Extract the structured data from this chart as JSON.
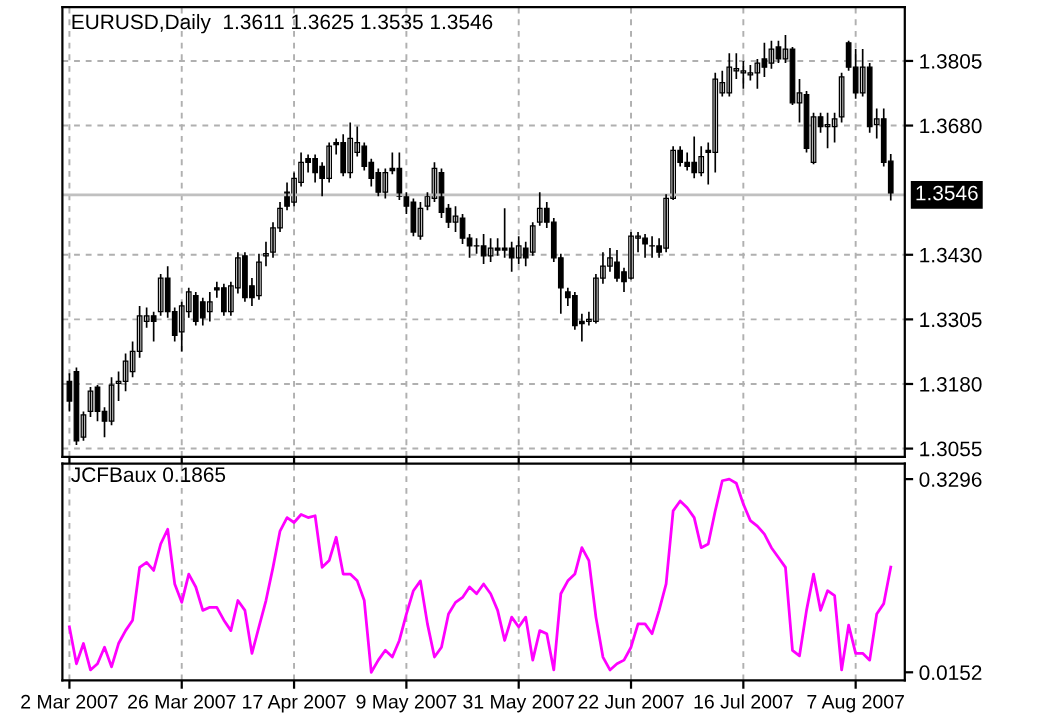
{
  "chart_data": [
    {
      "type": "candlestick",
      "title": "EURUSD,Daily  1.3611 1.3625 1.3535 1.3546",
      "categories": [
        null,
        null,
        null,
        null,
        null,
        null,
        null,
        null,
        null,
        null,
        null,
        null,
        null,
        null,
        null,
        null,
        null,
        null,
        null,
        null,
        null,
        null,
        null,
        null,
        null,
        null,
        null,
        null,
        null,
        null,
        null,
        null,
        null,
        null,
        null,
        null,
        null,
        null,
        null,
        null,
        null,
        null,
        null,
        null,
        null,
        null,
        null,
        null,
        null,
        null,
        null,
        null,
        null,
        null,
        null,
        null,
        null,
        null,
        null,
        null,
        null,
        null,
        null,
        null,
        null,
        null,
        null,
        null,
        null,
        null,
        null,
        null,
        null,
        null,
        null,
        null,
        null,
        null,
        null,
        null,
        null,
        null,
        null,
        null,
        null,
        null,
        null,
        null,
        null,
        null,
        null,
        null,
        null,
        null,
        null,
        null,
        null,
        null,
        null,
        null,
        null,
        null,
        null,
        null,
        null,
        null,
        null,
        null,
        null,
        null,
        null,
        null,
        null,
        null,
        null,
        null,
        null,
        null
      ],
      "ohlc": [
        [
          1.3185,
          1.3201,
          1.3127,
          1.3147
        ],
        [
          1.3204,
          1.3212,
          1.3062,
          1.307
        ],
        [
          1.3077,
          1.3127,
          1.307,
          1.312
        ],
        [
          1.3127,
          1.3174,
          1.3116,
          1.3166
        ],
        [
          1.3174,
          1.3178,
          1.3108,
          1.3127
        ],
        [
          1.3127,
          1.3135,
          1.3077,
          1.3108
        ],
        [
          1.3108,
          1.3193,
          1.31,
          1.3178
        ],
        [
          1.3181,
          1.3204,
          1.3147,
          1.3185
        ],
        [
          1.3185,
          1.3239,
          1.3166,
          1.3224
        ],
        [
          1.3204,
          1.3262,
          1.3193,
          1.3243
        ],
        [
          1.3243,
          1.3331,
          1.3231,
          1.3312
        ],
        [
          1.3301,
          1.3328,
          1.3289,
          1.3312
        ],
        [
          1.3312,
          1.332,
          1.3262,
          1.3301
        ],
        [
          1.332,
          1.3393,
          1.3312,
          1.3385
        ],
        [
          1.3385,
          1.3408,
          1.3308,
          1.332
        ],
        [
          1.332,
          1.3328,
          1.3262,
          1.3274
        ],
        [
          1.3281,
          1.3339,
          1.3243,
          1.3331
        ],
        [
          1.332,
          1.3366,
          1.3308,
          1.3358
        ],
        [
          1.3351,
          1.3358,
          1.3293,
          1.3301
        ],
        [
          1.3339,
          1.3347,
          1.3293,
          1.3308
        ],
        [
          1.332,
          1.3358,
          1.3301,
          1.3339
        ],
        [
          1.3366,
          1.3378,
          1.3347,
          1.3362
        ],
        [
          1.3366,
          1.3374,
          1.3312,
          1.332
        ],
        [
          1.332,
          1.3378,
          1.3312,
          1.337
        ],
        [
          1.3366,
          1.3435,
          1.3355,
          1.3424
        ],
        [
          1.3428,
          1.3435,
          1.3339,
          1.3347
        ],
        [
          1.337,
          1.3385,
          1.3331,
          1.3347
        ],
        [
          1.3351,
          1.3432,
          1.3343,
          1.3416
        ],
        [
          1.3428,
          1.3455,
          1.3408,
          1.3432
        ],
        [
          1.3435,
          1.3493,
          1.3424,
          1.3482
        ],
        [
          1.3482,
          1.3532,
          1.3474,
          1.352
        ],
        [
          1.3551,
          1.357,
          1.3516,
          1.3524
        ],
        [
          1.3532,
          1.3589,
          1.3524,
          1.3578
        ],
        [
          1.357,
          1.3628,
          1.3562,
          1.3609
        ],
        [
          1.3616,
          1.3624,
          1.3589,
          1.3609
        ],
        [
          1.3616,
          1.3624,
          1.357,
          1.3589
        ],
        [
          1.3601,
          1.3609,
          1.3543,
          1.3578
        ],
        [
          1.3578,
          1.3647,
          1.357,
          1.364
        ],
        [
          1.3647,
          1.3655,
          1.3624,
          1.3643
        ],
        [
          1.3647,
          1.3663,
          1.3582,
          1.3589
        ],
        [
          1.3589,
          1.3686,
          1.3578,
          1.3655
        ],
        [
          1.3628,
          1.3678,
          1.362,
          1.3647
        ],
        [
          1.364,
          1.3647,
          1.3593,
          1.3601
        ],
        [
          1.3609,
          1.3616,
          1.3562,
          1.3578
        ],
        [
          1.3589,
          1.3597,
          1.3543,
          1.3551
        ],
        [
          1.3551,
          1.3597,
          1.3539,
          1.3589
        ],
        [
          1.3597,
          1.3628,
          1.3586,
          1.3593
        ],
        [
          1.3597,
          1.3628,
          1.3536,
          1.3543
        ],
        [
          1.3543,
          1.3551,
          1.3509,
          1.3524
        ],
        [
          1.3532,
          1.3539,
          1.3466,
          1.3474
        ],
        [
          1.3466,
          1.3532,
          1.3459,
          1.352
        ],
        [
          1.3524,
          1.3551,
          1.3516,
          1.3543
        ],
        [
          1.3539,
          1.3609,
          1.3532,
          1.3597
        ],
        [
          1.3589,
          1.3597,
          1.3501,
          1.3512
        ],
        [
          1.352,
          1.3528,
          1.3482,
          1.3493
        ],
        [
          1.3493,
          1.3524,
          1.3474,
          1.3505
        ],
        [
          1.3501,
          1.3509,
          1.3451,
          1.3462
        ],
        [
          1.3462,
          1.347,
          1.3424,
          1.3447
        ],
        [
          1.3447,
          1.3462,
          1.3432,
          1.3447
        ],
        [
          1.3447,
          1.347,
          1.3412,
          1.3428
        ],
        [
          1.3428,
          1.3462,
          1.3416,
          1.3443
        ],
        [
          1.3443,
          1.3462,
          1.3428,
          1.3439
        ],
        [
          1.3443,
          1.352,
          1.3424,
          1.3439
        ],
        [
          1.3443,
          1.3455,
          1.3397,
          1.3424
        ],
        [
          1.3424,
          1.3466,
          1.3412,
          1.3447
        ],
        [
          1.3443,
          1.3455,
          1.3408,
          1.3424
        ],
        [
          1.3435,
          1.3493,
          1.3428,
          1.3486
        ],
        [
          1.3493,
          1.3551,
          1.3486,
          1.352
        ],
        [
          1.352,
          1.3532,
          1.3482,
          1.3493
        ],
        [
          1.3493,
          1.3501,
          1.3416,
          1.3424
        ],
        [
          1.3424,
          1.3432,
          1.3316,
          1.3366
        ],
        [
          1.3358,
          1.3366,
          1.3331,
          1.3347
        ],
        [
          1.3351,
          1.3358,
          1.3285,
          1.3293
        ],
        [
          1.3301,
          1.3316,
          1.3262,
          1.3297
        ],
        [
          1.3301,
          1.332,
          1.3293,
          1.3305
        ],
        [
          1.3301,
          1.3393,
          1.3297,
          1.3385
        ],
        [
          1.3385,
          1.3435,
          1.3374,
          1.3408
        ],
        [
          1.3408,
          1.3443,
          1.3397,
          1.3424
        ],
        [
          1.3416,
          1.3439,
          1.3378,
          1.3385
        ],
        [
          1.3397,
          1.3405,
          1.3358,
          1.3378
        ],
        [
          1.3385,
          1.3474,
          1.3382,
          1.3466
        ],
        [
          1.3462,
          1.3474,
          1.3435,
          1.3466
        ],
        [
          1.3462,
          1.347,
          1.3424,
          1.3451
        ],
        [
          1.3447,
          1.3466,
          1.3424,
          1.3447
        ],
        [
          1.3447,
          1.3462,
          1.3424,
          1.3435
        ],
        [
          1.3443,
          1.3547,
          1.3435,
          1.3539
        ],
        [
          1.3539,
          1.364,
          1.3536,
          1.3632
        ],
        [
          1.3632,
          1.364,
          1.3601,
          1.3609
        ],
        [
          1.3609,
          1.3628,
          1.3593,
          1.3601
        ],
        [
          1.3609,
          1.3659,
          1.3578,
          1.3589
        ],
        [
          1.3589,
          1.364,
          1.3582,
          1.362
        ],
        [
          1.3632,
          1.3647,
          1.3566,
          1.3628
        ],
        [
          1.3628,
          1.3782,
          1.3589,
          1.377
        ],
        [
          1.3743,
          1.3786,
          1.3736,
          1.3763
        ],
        [
          1.3743,
          1.382,
          1.3736,
          1.3793
        ],
        [
          1.3786,
          1.382,
          1.377,
          1.379
        ],
        [
          1.3782,
          1.3805,
          1.3751,
          1.3786
        ],
        [
          1.3778,
          1.3797,
          1.3767,
          1.3782
        ],
        [
          1.3782,
          1.3809,
          1.3751,
          1.3801
        ],
        [
          1.3809,
          1.384,
          1.3774,
          1.3793
        ],
        [
          1.3801,
          1.3844,
          1.379,
          1.3828
        ],
        [
          1.3832,
          1.3844,
          1.3801,
          1.3809
        ],
        [
          1.3809,
          1.3855,
          1.3801,
          1.3828
        ],
        [
          1.3828,
          1.3832,
          1.372,
          1.3724
        ],
        [
          1.3724,
          1.377,
          1.3686,
          1.3743
        ],
        [
          1.374,
          1.3747,
          1.3628,
          1.3636
        ],
        [
          1.3609,
          1.3705,
          1.3605,
          1.3697
        ],
        [
          1.3697,
          1.3705,
          1.3666,
          1.3678
        ],
        [
          1.3678,
          1.3705,
          1.3636,
          1.3682
        ],
        [
          1.3678,
          1.3705,
          1.3647,
          1.3693
        ],
        [
          1.3697,
          1.3782,
          1.3686,
          1.3774
        ],
        [
          1.384,
          1.3844,
          1.3786,
          1.3793
        ],
        [
          1.3793,
          1.3828,
          1.3732,
          1.3743
        ],
        [
          1.3743,
          1.3828,
          1.3736,
          1.3793
        ],
        [
          1.3793,
          1.3801,
          1.3666,
          1.3678
        ],
        [
          1.3682,
          1.3713,
          1.3655,
          1.3693
        ],
        [
          1.3693,
          1.3713,
          1.3601,
          1.3609
        ],
        [
          1.3611,
          1.3625,
          1.3535,
          1.3546
        ]
      ],
      "ylim": [
        1.3039,
        1.3909
      ],
      "yticks": [
        1.3055,
        {
          "value": 1.318,
          "label": "1.3180"
        },
        1.3305,
        {
          "value": 1.343,
          "label": "1.3430"
        },
        {
          "value": 1.368,
          "label": "1.3680"
        },
        1.3805
      ],
      "ref_lines": [
        {
          "axis": "y",
          "value": 1.3546,
          "label": "1.3546",
          "color": "#c0c0c0"
        }
      ],
      "grid": true,
      "tick_labels": "y"
    },
    {
      "type": "line",
      "title": "JCFBaux 0.1865",
      "categories": [
        "2 Mar 2007",
        null,
        null,
        null,
        null,
        null,
        null,
        null,
        null,
        null,
        null,
        null,
        null,
        null,
        null,
        null,
        "26 Mar 2007",
        null,
        null,
        null,
        null,
        null,
        null,
        null,
        null,
        null,
        null,
        null,
        null,
        null,
        null,
        null,
        "17 Apr 2007",
        null,
        null,
        null,
        null,
        null,
        null,
        null,
        null,
        null,
        null,
        null,
        null,
        null,
        null,
        null,
        "9 May 2007",
        null,
        null,
        null,
        null,
        null,
        null,
        null,
        null,
        null,
        null,
        null,
        null,
        null,
        null,
        null,
        "31 May 2007",
        null,
        null,
        null,
        null,
        null,
        null,
        null,
        null,
        null,
        null,
        null,
        null,
        null,
        null,
        null,
        "22 Jun 2007",
        null,
        null,
        null,
        null,
        null,
        null,
        null,
        null,
        null,
        null,
        null,
        null,
        null,
        null,
        null,
        "16 Jul 2007",
        null,
        null,
        null,
        null,
        null,
        null,
        null,
        null,
        null,
        null,
        null,
        null,
        null,
        null,
        null,
        "7 Aug 2007",
        null,
        null,
        null,
        null,
        null
      ],
      "series": [
        {
          "color": "#ff00ff",
          "values": [
            0.089,
            0.029,
            0.062,
            0.019,
            0.029,
            0.056,
            0.024,
            0.062,
            0.083,
            0.1,
            0.186,
            0.194,
            0.181,
            0.224,
            0.248,
            0.159,
            0.129,
            0.175,
            0.154,
            0.116,
            0.121,
            0.121,
            0.1,
            0.083,
            0.132,
            0.116,
            0.046,
            0.089,
            0.132,
            0.186,
            0.245,
            0.267,
            0.259,
            0.272,
            0.267,
            0.27,
            0.186,
            0.197,
            0.235,
            0.175,
            0.175,
            0.164,
            0.132,
            0.0152,
            0.035,
            0.051,
            0.04,
            0.067,
            0.11,
            0.148,
            0.164,
            0.094,
            0.04,
            0.056,
            0.11,
            0.129,
            0.137,
            0.154,
            0.143,
            0.159,
            0.143,
            0.116,
            0.067,
            0.105,
            0.089,
            0.105,
            0.035,
            0.083,
            0.078,
            0.019,
            0.143,
            0.164,
            0.175,
            0.218,
            0.197,
            0.105,
            0.04,
            0.019,
            0.029,
            0.035,
            0.056,
            0.094,
            0.094,
            0.078,
            0.116,
            0.159,
            0.278,
            0.294,
            0.283,
            0.267,
            0.218,
            0.224,
            0.278,
            0.327,
            0.3296,
            0.323,
            0.289,
            0.262,
            0.253,
            0.24,
            0.218,
            0.202,
            0.186,
            0.051,
            0.042,
            0.116,
            0.175,
            0.116,
            0.148,
            0.14,
            0.019,
            0.092,
            0.046,
            0.046,
            0.035,
            0.11,
            0.127,
            0.1865
          ]
        }
      ],
      "ylim": [
        0.002,
        0.355
      ],
      "yticks": [
        0.0152,
        0.3296
      ],
      "grid": "x",
      "marker": "none",
      "line_style": "solid"
    }
  ]
}
